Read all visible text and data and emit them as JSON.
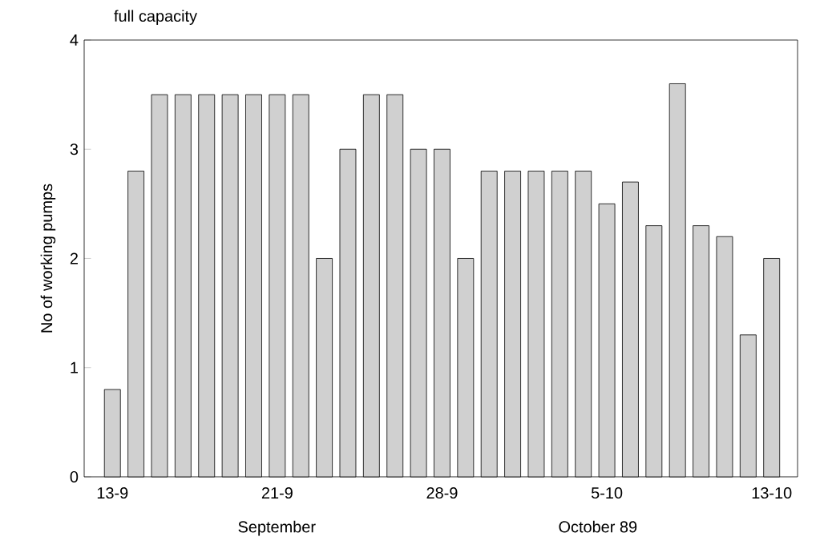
{
  "chart_data": {
    "type": "bar",
    "ylabel": "No of working pumps",
    "annotations": [
      "full capacity",
      "September",
      "October 89"
    ],
    "categories": [
      "13-9",
      null,
      null,
      null,
      null,
      null,
      null,
      "21-9",
      null,
      null,
      null,
      null,
      null,
      null,
      "28-9",
      null,
      null,
      null,
      null,
      null,
      null,
      "5-10",
      null,
      null,
      null,
      null,
      null,
      null,
      "13-10"
    ],
    "values": [
      0.8,
      2.8,
      3.5,
      3.5,
      3.5,
      3.5,
      3.5,
      3.5,
      3.5,
      2.0,
      3.0,
      3.5,
      3.5,
      3.0,
      3.0,
      2.0,
      2.8,
      2.8,
      2.8,
      2.8,
      2.8,
      2.5,
      2.7,
      2.3,
      3.6,
      2.3,
      2.2,
      1.3,
      2.0
    ],
    "color": "#d0d0d0",
    "ylim": [
      0,
      4
    ],
    "yticks": [
      0,
      1,
      2,
      3,
      4
    ],
    "grid": false
  }
}
